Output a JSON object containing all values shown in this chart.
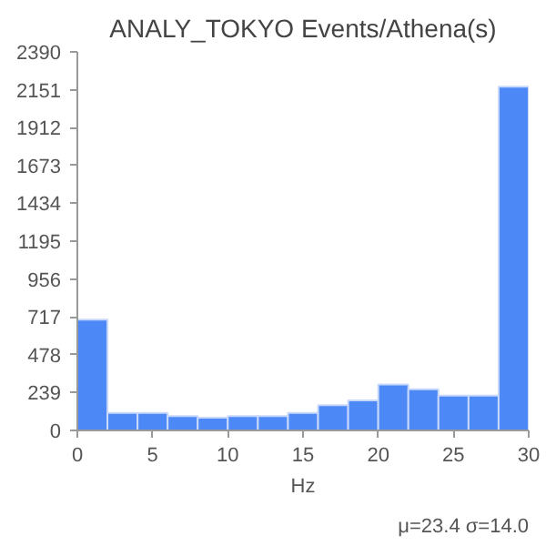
{
  "chart_data": {
    "type": "histogram",
    "title": "ANALY_TOKYO Events/Athena(s)",
    "xlabel": "Hz",
    "bins": [
      0,
      2,
      4,
      6,
      8,
      10,
      12,
      14,
      16,
      18,
      20,
      22,
      24,
      26,
      28,
      30
    ],
    "values": [
      700,
      110,
      110,
      90,
      80,
      90,
      90,
      110,
      160,
      190,
      290,
      260,
      220,
      220,
      2170
    ],
    "color": "#4d88f7",
    "xlim": [
      0,
      30
    ],
    "xticks": [
      0,
      5,
      10,
      15,
      20,
      25,
      30
    ],
    "ylim": [
      0,
      2390
    ],
    "yticks": [
      0,
      239,
      478,
      717,
      956,
      1195,
      1434,
      1673,
      1912,
      2151,
      2390
    ],
    "grid": false,
    "annotations": [
      "μ=23.4 σ=14.0"
    ]
  }
}
